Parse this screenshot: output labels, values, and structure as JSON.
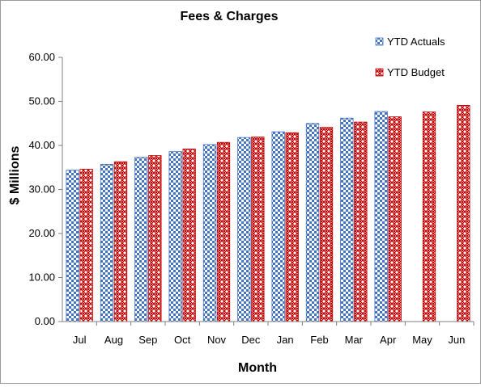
{
  "chart_data": {
    "type": "bar",
    "title": "Fees & Charges",
    "xlabel": "Month",
    "ylabel": "$ Millions",
    "ylim": [
      0,
      60
    ],
    "yticks": [
      "0.00",
      "10.00",
      "20.00",
      "30.00",
      "40.00",
      "50.00",
      "60.00"
    ],
    "grid": false,
    "legend_position": "top-right",
    "categories": [
      "Jul",
      "Aug",
      "Sep",
      "Oct",
      "Nov",
      "Dec",
      "Jan",
      "Feb",
      "Mar",
      "Apr",
      "May",
      "Jun"
    ],
    "series": [
      {
        "name": "YTD Actuals",
        "color": "#4472c4",
        "pattern": "checkerboard",
        "values": [
          34.4,
          35.7,
          37.3,
          38.6,
          40.2,
          41.8,
          43.1,
          45.0,
          46.2,
          47.7,
          null,
          null
        ]
      },
      {
        "name": "YTD Budget",
        "color": "#c00000",
        "pattern": "weave",
        "values": [
          34.6,
          36.3,
          37.7,
          39.2,
          40.7,
          41.9,
          42.9,
          44.1,
          45.3,
          46.5,
          47.6,
          49.1
        ]
      }
    ]
  }
}
